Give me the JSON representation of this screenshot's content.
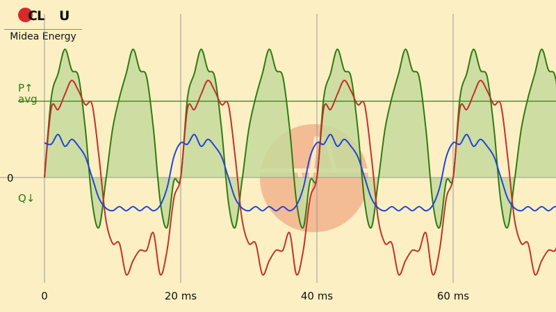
{
  "brand": {
    "logo_mark": "CLOU",
    "name": "Midea Energy"
  },
  "colors": {
    "background": "#fcefc3",
    "voltage": "#2e7a10",
    "voltage_fill": "#c6d99c",
    "current": "#c03028",
    "reactive": "#1f44d8",
    "label_green": "#2e7a10",
    "watermark": "#e86a4a"
  },
  "chart_data": {
    "type": "line",
    "xlabel": "",
    "ylabel": "",
    "xlim": [
      0,
      75
    ],
    "ylim": [
      -145,
      190
    ],
    "x_ticks": [
      {
        "value": 0,
        "label": "0"
      },
      {
        "value": 20,
        "label": "20 ms"
      },
      {
        "value": 40,
        "label": "40 ms"
      },
      {
        "value": 60,
        "label": "60 ms"
      }
    ],
    "y_labels": [
      {
        "value": 110,
        "text": "P↑\navg",
        "color": "#2e7a10"
      },
      {
        "value": 0,
        "text": "0",
        "color": "#111111"
      },
      {
        "value": -25,
        "text": "Q↓",
        "color": "#2e7a10"
      }
    ],
    "reference_line": {
      "name": "avg",
      "value": 110
    },
    "period_ms": 20,
    "series": [
      {
        "key": "green",
        "style": "filled",
        "x": [
          0,
          1,
          2,
          3,
          4,
          5,
          6,
          7,
          8,
          9,
          10,
          11,
          12,
          13,
          14,
          15,
          16,
          17,
          18,
          19,
          20
        ],
        "y": [
          0,
          115,
          150,
          185,
          155,
          145,
          70,
          -35,
          -72,
          -5,
          70,
          115,
          150,
          185,
          155,
          145,
          70,
          -35,
          -72,
          -5,
          0
        ]
      },
      {
        "key": "red",
        "style": "line",
        "x": [
          0,
          1,
          2,
          3,
          4,
          5,
          6,
          7,
          8,
          9,
          10,
          11,
          12,
          13,
          14,
          15,
          16,
          17,
          18,
          19,
          20
        ],
        "y": [
          0,
          100,
          98,
          120,
          140,
          125,
          105,
          105,
          30,
          -60,
          -95,
          -95,
          -140,
          -120,
          -105,
          -105,
          -80,
          -140,
          -105,
          -30,
          0
        ]
      },
      {
        "key": "blue",
        "style": "line",
        "x": [
          0,
          1,
          2,
          3,
          4,
          5,
          6,
          7,
          8,
          9,
          10,
          11,
          12,
          13,
          14,
          15,
          16,
          17,
          18,
          19,
          20
        ],
        "y": [
          50,
          48,
          62,
          45,
          55,
          45,
          30,
          0,
          -30,
          -44,
          -48,
          -42,
          -48,
          -42,
          -48,
          -42,
          -48,
          -40,
          -15,
          30,
          50
        ]
      }
    ]
  }
}
